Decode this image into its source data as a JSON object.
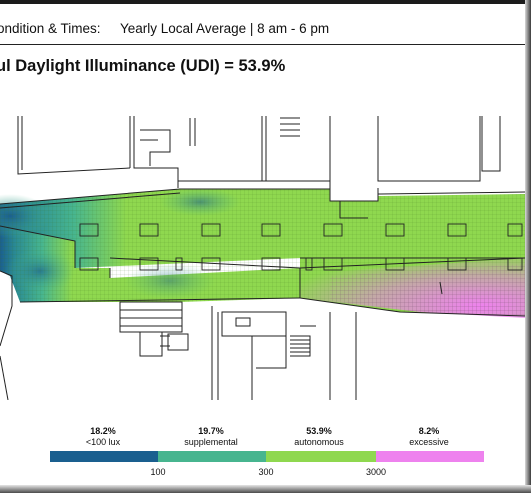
{
  "header": {
    "condition_label": "ondition & Times:",
    "condition_value": "Yearly Local Average | 8 am - 6 pm",
    "title": "ul Daylight Illuminance (UDI) = 53.9%"
  },
  "colors": {
    "under_100": "#1a5f8f",
    "supplemental": "#47b58f",
    "autonomous": "#8fd84f",
    "excessive": "#ee82ee",
    "walls": "#222222"
  },
  "legend": {
    "bins": [
      {
        "pct": "18.2%",
        "name": "<100 lux",
        "color": "#1a5f8f"
      },
      {
        "pct": "19.7%",
        "name": "supplemental",
        "color": "#47b58f"
      },
      {
        "pct": "53.9%",
        "name": "autonomous",
        "color": "#8fd84f"
      },
      {
        "pct": "8.2%",
        "name": "excessive",
        "color": "#ee82ee"
      }
    ],
    "ticks": [
      "100",
      "300",
      "3000"
    ]
  }
}
